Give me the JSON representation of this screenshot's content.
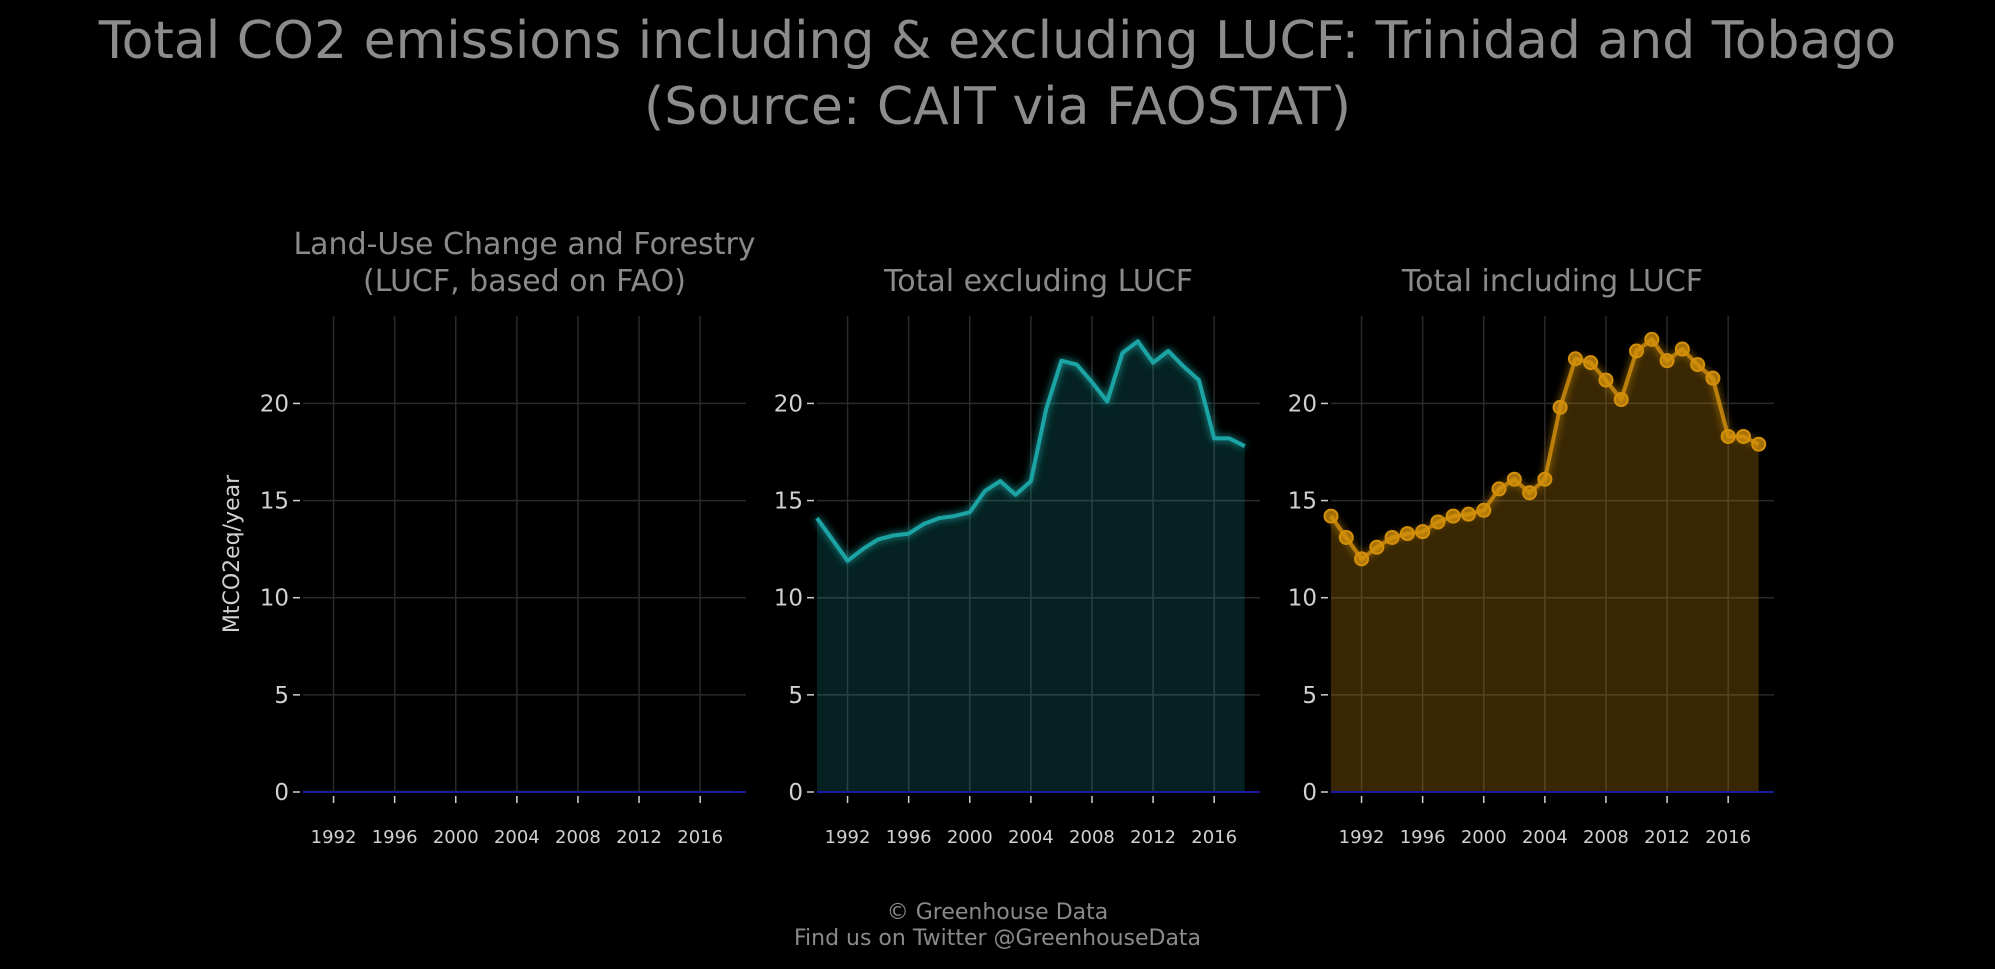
{
  "title": "Total CO2 emissions including & excluding LUCF: Trinidad and Tobago\n(Source: CAIT via FAOSTAT)",
  "footer": {
    "line1": "© Greenhouse Data",
    "line2": "Find us on Twitter @GreenhouseData"
  },
  "colors": {
    "background": "#000000",
    "grid": "#2a2a2a",
    "text": "#8a8a8a",
    "tick": "#d0d0d0",
    "lucf": "#1f7a1f",
    "excl": "#1aa3a3",
    "incl": "#d4900a",
    "baseline": "#1a1aa0"
  },
  "chart_data": [
    {
      "type": "area",
      "title": "Land-Use Change and Forestry\n(LUCF, based on FAO)",
      "ylabel": "MtCO2eq/year",
      "xlim": [
        1990,
        2019
      ],
      "ylim": [
        0,
        24.5
      ],
      "xticks": [
        1992,
        1996,
        2000,
        2004,
        2008,
        2012,
        2016
      ],
      "yticks": [
        0,
        5,
        10,
        15,
        20
      ],
      "grid": true,
      "color_key": "lucf",
      "markers": false,
      "series": [
        {
          "x": [
            1990,
            1991,
            1992,
            1993,
            1994,
            1995,
            1996,
            1997,
            1998,
            1999,
            2000,
            2001,
            2002,
            2003,
            2004,
            2005,
            2006,
            2007,
            2008,
            2009,
            2010,
            2011,
            2012,
            2013,
            2014,
            2015,
            2016,
            2017,
            2018
          ],
          "values": [
            0.1,
            0.1,
            0.1,
            0.1,
            0.1,
            0.1,
            0.1,
            0.1,
            0.1,
            0.1,
            0.1,
            0.1,
            0.1,
            0.1,
            0.1,
            0.1,
            0.1,
            0.1,
            0.1,
            0.1,
            0.1,
            0.1,
            0.1,
            0.1,
            0.1,
            0.1,
            0.1,
            0.1,
            0.1
          ]
        }
      ]
    },
    {
      "type": "area",
      "title": "Total excluding LUCF",
      "ylabel": "",
      "xlim": [
        1990,
        2019
      ],
      "ylim": [
        0,
        24.5
      ],
      "xticks": [
        1992,
        1996,
        2000,
        2004,
        2008,
        2012,
        2016
      ],
      "yticks": [
        0,
        5,
        10,
        15,
        20
      ],
      "grid": true,
      "color_key": "excl",
      "markers": false,
      "series": [
        {
          "x": [
            1990,
            1991,
            1992,
            1993,
            1994,
            1995,
            1996,
            1997,
            1998,
            1999,
            2000,
            2001,
            2002,
            2003,
            2004,
            2005,
            2006,
            2007,
            2008,
            2009,
            2010,
            2011,
            2012,
            2013,
            2014,
            2015,
            2016,
            2017,
            2018
          ],
          "values": [
            14.1,
            13.0,
            11.9,
            12.5,
            13.0,
            13.2,
            13.3,
            13.8,
            14.1,
            14.2,
            14.4,
            15.5,
            16.0,
            15.3,
            16.0,
            19.7,
            22.2,
            22.0,
            21.1,
            20.1,
            22.6,
            23.2,
            22.1,
            22.7,
            21.9,
            21.2,
            18.2,
            18.2,
            17.8
          ]
        }
      ]
    },
    {
      "type": "area",
      "title": "Total including LUCF",
      "ylabel": "",
      "xlim": [
        1990,
        2019
      ],
      "ylim": [
        0,
        24.5
      ],
      "xticks": [
        1992,
        1996,
        2000,
        2004,
        2008,
        2012,
        2016
      ],
      "yticks": [
        0,
        5,
        10,
        15,
        20
      ],
      "grid": true,
      "color_key": "incl",
      "markers": true,
      "series": [
        {
          "x": [
            1990,
            1991,
            1992,
            1993,
            1994,
            1995,
            1996,
            1997,
            1998,
            1999,
            2000,
            2001,
            2002,
            2003,
            2004,
            2005,
            2006,
            2007,
            2008,
            2009,
            2010,
            2011,
            2012,
            2013,
            2014,
            2015,
            2016,
            2017,
            2018
          ],
          "values": [
            14.2,
            13.1,
            12.0,
            12.6,
            13.1,
            13.3,
            13.4,
            13.9,
            14.2,
            14.3,
            14.5,
            15.6,
            16.1,
            15.4,
            16.1,
            19.8,
            22.3,
            22.1,
            21.2,
            20.2,
            22.7,
            23.3,
            22.2,
            22.8,
            22.0,
            21.3,
            18.3,
            18.3,
            17.9
          ]
        }
      ]
    }
  ]
}
